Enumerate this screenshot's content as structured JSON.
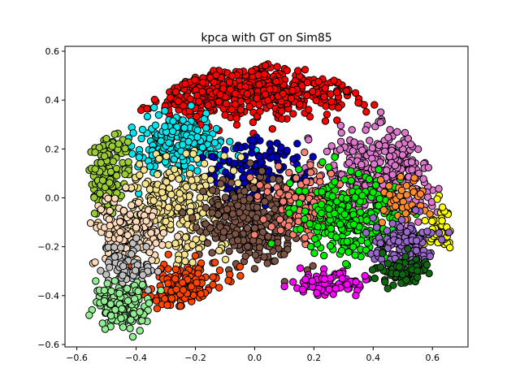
{
  "chart_data": {
    "type": "scatter",
    "title": "kpca with GT on Sim85",
    "xlabel": "",
    "ylabel": "",
    "xlim": [
      -0.64,
      0.72
    ],
    "ylim": [
      -0.61,
      0.62
    ],
    "x_ticks": [
      -0.6,
      -0.4,
      -0.2,
      0.0,
      0.2,
      0.4,
      0.6
    ],
    "x_tick_labels": [
      "−0.6",
      "−0.4",
      "−0.2",
      "0.0",
      "0.2",
      "0.4",
      "0.6"
    ],
    "y_ticks": [
      -0.6,
      -0.4,
      -0.2,
      0.0,
      0.2,
      0.4,
      0.6
    ],
    "y_tick_labels": [
      "−0.6",
      "−0.4",
      "−0.2",
      "0.0",
      "0.2",
      "0.4",
      "0.6"
    ],
    "grid": false,
    "legend": "none",
    "marker_edge_color": "#000000",
    "clusters": [
      {
        "color": "#ff0000",
        "center": [
          -0.05,
          0.44
        ],
        "spread": [
          0.22,
          0.06
        ],
        "count": 520
      },
      {
        "color": "#dd77cc",
        "center": [
          0.42,
          0.12
        ],
        "spread": [
          0.1,
          0.1
        ],
        "count": 330
      },
      {
        "color": "#00e5ee",
        "center": [
          -0.25,
          0.22
        ],
        "spread": [
          0.08,
          0.06
        ],
        "count": 240
      },
      {
        "color": "#0000bb",
        "center": [
          0.0,
          0.1
        ],
        "spread": [
          0.09,
          0.08
        ],
        "count": 150
      },
      {
        "color": "#9acd32",
        "center": [
          -0.5,
          0.1
        ],
        "spread": [
          0.04,
          0.1
        ],
        "count": 150
      },
      {
        "color": "#f5e28a",
        "center": [
          -0.25,
          -0.05
        ],
        "spread": [
          0.09,
          0.1
        ],
        "count": 300
      },
      {
        "color": "#ffdab9",
        "center": [
          -0.43,
          -0.14
        ],
        "spread": [
          0.06,
          0.07
        ],
        "count": 170
      },
      {
        "color": "#7b5344",
        "center": [
          0.0,
          -0.1
        ],
        "spread": [
          0.09,
          0.09
        ],
        "count": 300
      },
      {
        "color": "#fa8072",
        "center": [
          0.17,
          -0.02
        ],
        "spread": [
          0.07,
          0.07
        ],
        "count": 130
      },
      {
        "color": "#00ee00",
        "center": [
          0.33,
          -0.08
        ],
        "spread": [
          0.09,
          0.08
        ],
        "count": 260
      },
      {
        "color": "#ff8c2a",
        "center": [
          0.51,
          -0.01
        ],
        "spread": [
          0.04,
          0.05
        ],
        "count": 50
      },
      {
        "color": "#ffff00",
        "center": [
          0.63,
          -0.13
        ],
        "spread": [
          0.025,
          0.05
        ],
        "count": 55
      },
      {
        "color": "#9966cc",
        "center": [
          0.5,
          -0.21
        ],
        "spread": [
          0.05,
          0.05
        ],
        "count": 150
      },
      {
        "color": "#116611",
        "center": [
          0.5,
          -0.3
        ],
        "spread": [
          0.05,
          0.03
        ],
        "count": 80
      },
      {
        "color": "#ff00ff",
        "center": [
          0.26,
          -0.35
        ],
        "spread": [
          0.06,
          0.025
        ],
        "count": 90
      },
      {
        "color": "#ff4400",
        "center": [
          -0.22,
          -0.37
        ],
        "spread": [
          0.07,
          0.05
        ],
        "count": 160
      },
      {
        "color": "#c0c0c0",
        "center": [
          -0.42,
          -0.3
        ],
        "spread": [
          0.04,
          0.05
        ],
        "count": 80
      },
      {
        "color": "#90ee90",
        "center": [
          -0.45,
          -0.44
        ],
        "spread": [
          0.05,
          0.045
        ],
        "count": 150
      }
    ]
  }
}
